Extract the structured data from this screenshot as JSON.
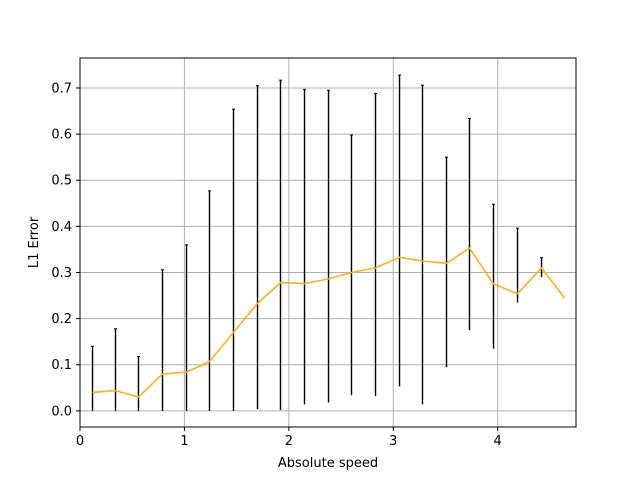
{
  "chart_data": {
    "type": "line",
    "title": "",
    "xlabel": "Absolute speed",
    "ylabel": "L1 Error",
    "xlim": [
      0,
      4.75
    ],
    "ylim": [
      -0.035,
      0.765
    ],
    "grid": true,
    "legend": "none",
    "x_ticks": [
      0,
      1,
      2,
      3,
      4
    ],
    "x_tick_labels": [
      "0",
      "1",
      "2",
      "3",
      "4"
    ],
    "y_ticks": [
      0.0,
      0.1,
      0.2,
      0.3,
      0.4,
      0.5,
      0.6,
      0.7
    ],
    "y_tick_labels": [
      "0.0",
      "0.1",
      "0.2",
      "0.3",
      "0.4",
      "0.5",
      "0.6",
      "0.7"
    ],
    "colors": {
      "line": "#f8b128",
      "error_bar": "#000000",
      "grid": "#b0b0b0"
    },
    "series": [
      {
        "x": [
          0.12,
          0.34,
          0.56,
          0.79,
          1.02,
          1.24,
          1.47,
          1.7,
          1.92,
          2.15,
          2.38,
          2.6,
          2.83,
          3.06,
          3.28,
          3.51,
          3.73,
          3.96,
          4.19,
          4.42,
          4.64
        ],
        "y": [
          0.04,
          0.044,
          0.03,
          0.08,
          0.084,
          0.107,
          0.17,
          0.233,
          0.278,
          0.276,
          0.286,
          0.3,
          0.31,
          0.333,
          0.325,
          0.32,
          0.353,
          0.275,
          0.254,
          0.31,
          0.245
        ]
      }
    ],
    "error_bars": [
      {
        "x": 0.12,
        "low": 0.0,
        "high": 0.14
      },
      {
        "x": 0.34,
        "low": 0.0,
        "high": 0.178
      },
      {
        "x": 0.56,
        "low": 0.0,
        "high": 0.118
      },
      {
        "x": 0.79,
        "low": 0.0,
        "high": 0.306
      },
      {
        "x": 1.02,
        "low": 0.0,
        "high": 0.36
      },
      {
        "x": 1.24,
        "low": 0.0,
        "high": 0.477
      },
      {
        "x": 1.47,
        "low": 0.0,
        "high": 0.654
      },
      {
        "x": 1.7,
        "low": 0.004,
        "high": 0.705
      },
      {
        "x": 1.92,
        "low": 0.002,
        "high": 0.717
      },
      {
        "x": 2.15,
        "low": 0.014,
        "high": 0.697
      },
      {
        "x": 2.38,
        "low": 0.018,
        "high": 0.695
      },
      {
        "x": 2.6,
        "low": 0.034,
        "high": 0.598
      },
      {
        "x": 2.83,
        "low": 0.032,
        "high": 0.688
      },
      {
        "x": 3.06,
        "low": 0.053,
        "high": 0.728
      },
      {
        "x": 3.28,
        "low": 0.014,
        "high": 0.706
      },
      {
        "x": 3.51,
        "low": 0.095,
        "high": 0.55
      },
      {
        "x": 3.73,
        "low": 0.175,
        "high": 0.634
      },
      {
        "x": 3.96,
        "low": 0.135,
        "high": 0.448
      },
      {
        "x": 4.19,
        "low": 0.235,
        "high": 0.396
      },
      {
        "x": 4.42,
        "low": 0.29,
        "high": 0.332
      }
    ]
  }
}
